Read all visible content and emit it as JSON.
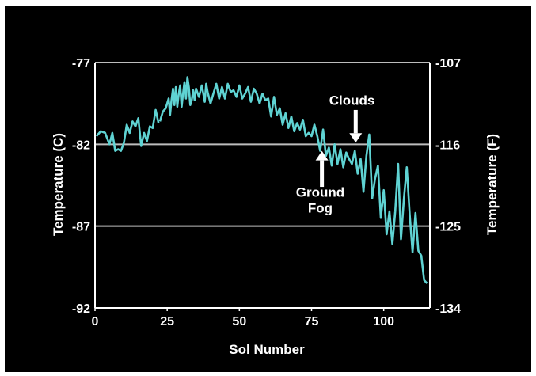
{
  "chart_data": {
    "type": "line",
    "xlabel": "Sol Number",
    "ylabel": "Temperature (C)",
    "ylabel_right": "Temperature (F)",
    "xlim": [
      0,
      116
    ],
    "ylim": [
      -92,
      -77
    ],
    "x_ticks": [
      "0",
      "25",
      "50",
      "75",
      "100"
    ],
    "y_ticks": [
      "-77",
      "-82",
      "-87",
      "-92"
    ],
    "y_ticks_right": [
      "-107",
      "-116",
      "-125",
      "-134"
    ],
    "grid_y": true,
    "line_color": "#5fd3d3",
    "series": [
      {
        "segments": [
          [
            [
              0.5,
              -81.5
            ],
            [
              2,
              -81.2
            ],
            [
              3.5,
              -81.3
            ],
            [
              5,
              -82
            ],
            [
              6,
              -81.3
            ],
            [
              7,
              -82.4
            ],
            [
              8,
              -82.3
            ],
            [
              9,
              -82.4
            ],
            [
              10,
              -81.9
            ],
            [
              11,
              -80.8
            ],
            [
              12,
              -81.3
            ],
            [
              13,
              -80.6
            ],
            [
              14,
              -80.9
            ],
            [
              15,
              -80.4
            ],
            [
              16,
              -82.1
            ],
            [
              17,
              -81.3
            ],
            [
              18,
              -81.8
            ],
            [
              19,
              -80.9
            ],
            [
              20,
              -81
            ],
            [
              21,
              -79.9
            ],
            [
              22,
              -80.7
            ]
          ],
          [
            [
              22.5,
              -80.6
            ],
            [
              23.5,
              -80
            ],
            [
              24.5,
              -79.8
            ],
            [
              25.5,
              -79.2
            ],
            [
              26,
              -80.2
            ],
            [
              26.5,
              -79.3
            ],
            [
              27,
              -78.6
            ],
            [
              27.5,
              -79.6
            ],
            [
              28,
              -78.5
            ],
            [
              28.5,
              -79.7
            ],
            [
              29,
              -78.9
            ],
            [
              29.5,
              -78.4
            ],
            [
              30,
              -79.7
            ],
            [
              30.5,
              -78.9
            ],
            [
              31,
              -78.2
            ],
            [
              31.5,
              -79.2
            ],
            [
              32,
              -77.9
            ],
            [
              32.5,
              -78.5
            ],
            [
              33,
              -79.6
            ],
            [
              33.5,
              -79.3
            ],
            [
              34,
              -78.7
            ],
            [
              34.5,
              -79.3
            ],
            [
              35,
              -78.6
            ],
            [
              36,
              -79.1
            ],
            [
              37,
              -78.4
            ],
            [
              38,
              -79.4
            ],
            [
              38.5,
              -78.3
            ],
            [
              39,
              -78.8
            ],
            [
              40,
              -79.5
            ],
            [
              41,
              -78.9
            ],
            [
              42,
              -78.3
            ],
            [
              43,
              -79.2
            ],
            [
              44,
              -78.5
            ],
            [
              45,
              -79.2
            ],
            [
              46,
              -78.3
            ],
            [
              47,
              -78.8
            ],
            [
              48,
              -78.7
            ],
            [
              49,
              -79.1
            ],
            [
              50,
              -78.4
            ],
            [
              51,
              -79.2
            ],
            [
              52,
              -78.9
            ],
            [
              53,
              -78.5
            ],
            [
              54,
              -79.4
            ],
            [
              55,
              -78.6
            ],
            [
              56,
              -78.9
            ],
            [
              57,
              -79.5
            ],
            [
              58,
              -78.9
            ],
            [
              59,
              -79.3
            ],
            [
              60,
              -79.2
            ],
            [
              61,
              -80.3
            ],
            [
              62,
              -79.1
            ],
            [
              63,
              -80.2
            ],
            [
              64,
              -79.8
            ],
            [
              65,
              -80.8
            ],
            [
              66,
              -80.1
            ],
            [
              67,
              -81
            ],
            [
              68,
              -80.3
            ],
            [
              69,
              -81.2
            ],
            [
              70,
              -80.7
            ],
            [
              71,
              -81.1
            ],
            [
              72,
              -80.5
            ],
            [
              73,
              -81.5
            ],
            [
              74,
              -81.3
            ],
            [
              75,
              -81.5
            ],
            [
              76,
              -80.8
            ],
            [
              77,
              -81.5
            ],
            [
              78,
              -82.4
            ],
            [
              79,
              -81.1
            ],
            [
              80,
              -82.7
            ],
            [
              81,
              -82.2
            ],
            [
              82,
              -83.3
            ],
            [
              83,
              -82
            ],
            [
              84,
              -83.2
            ],
            [
              85,
              -82.3
            ],
            [
              86,
              -83.4
            ],
            [
              87,
              -82.5
            ],
            [
              88,
              -82.9
            ],
            [
              89,
              -83.2
            ],
            [
              90,
              -82.4
            ],
            [
              91,
              -83.8
            ],
            [
              92,
              -82.9
            ],
            [
              93,
              -84.9
            ],
            [
              94,
              -82.7
            ],
            [
              95,
              -81.4
            ],
            [
              96,
              -85.3
            ],
            [
              97,
              -84.1
            ],
            [
              98,
              -83.3
            ],
            [
              99,
              -86.5
            ],
            [
              100,
              -84.8
            ],
            [
              101,
              -87.5
            ],
            [
              102,
              -86.1
            ],
            [
              103,
              -88.1
            ],
            [
              104,
              -86.1
            ],
            [
              105,
              -83.2
            ],
            [
              106,
              -87.8
            ],
            [
              107,
              -85.3
            ],
            [
              108,
              -83.4
            ],
            [
              109,
              -86.3
            ],
            [
              110,
              -88.6
            ],
            [
              111,
              -86.2
            ],
            [
              112,
              -88.5
            ],
            [
              113,
              -88.8
            ],
            [
              114,
              -90.3
            ],
            [
              115,
              -90.5
            ]
          ]
        ]
      }
    ],
    "annotations": [
      {
        "text": "Clouds",
        "x": 89,
        "y": -79.6,
        "arrow": "down",
        "arrow_from": -79.9,
        "arrow_to": -81.9
      },
      {
        "text": "Ground Fog",
        "x": 78,
        "y": -85.2,
        "arrow": "up",
        "arrow_from": -84.6,
        "arrow_to": -82.4
      }
    ]
  }
}
